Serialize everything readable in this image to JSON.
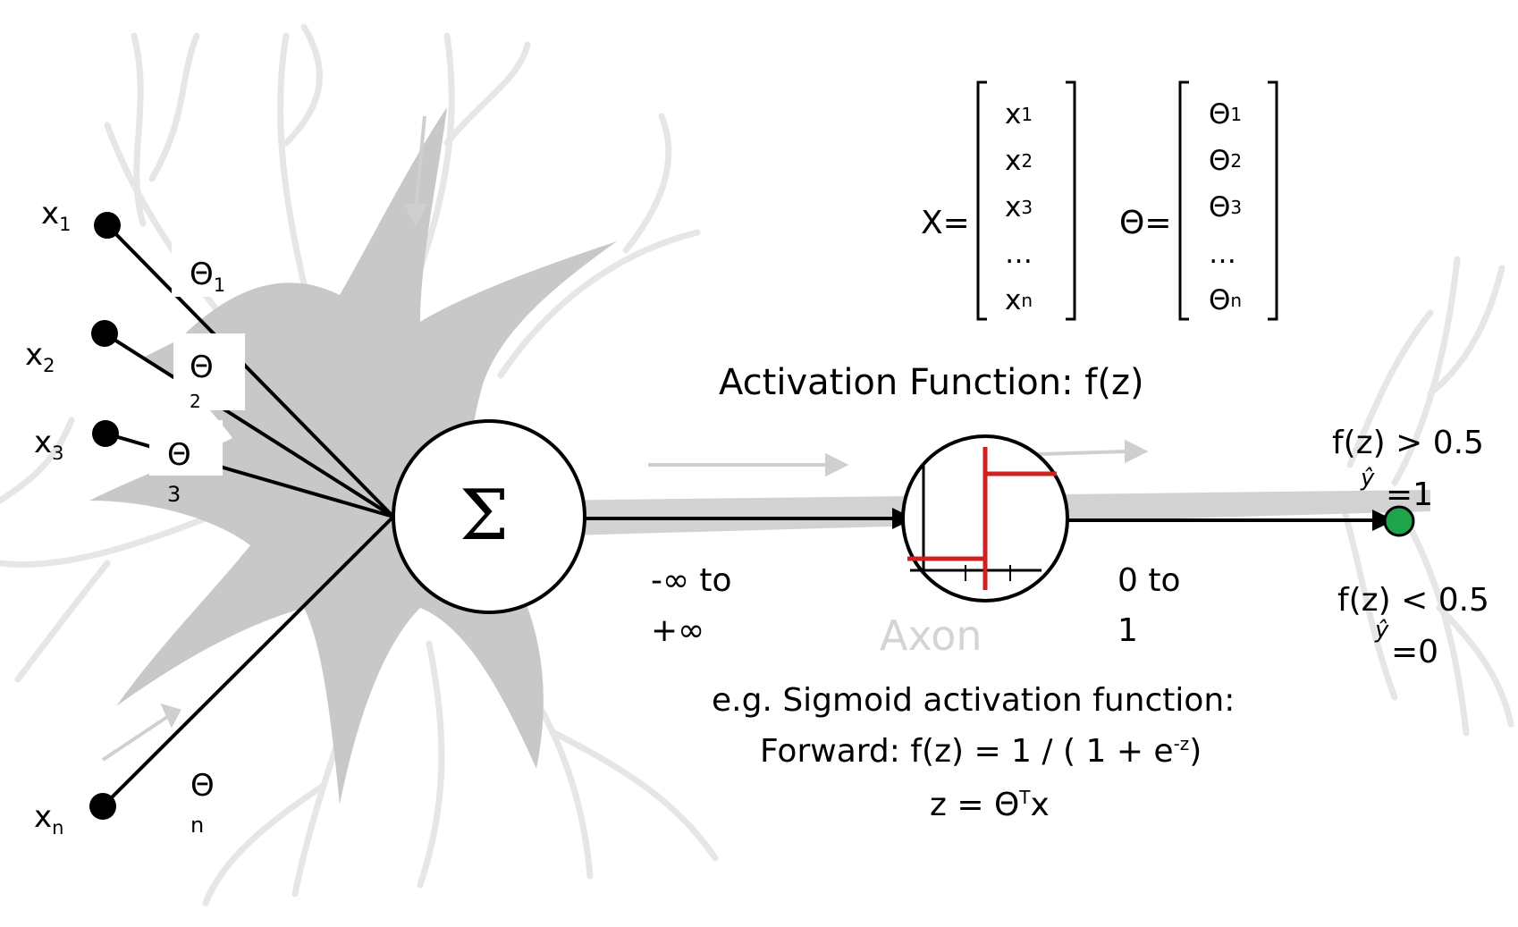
{
  "inputs": [
    {
      "name": "x",
      "sub": "1"
    },
    {
      "name": "x",
      "sub": "2"
    },
    {
      "name": "x",
      "sub": "3"
    },
    {
      "name": "x",
      "sub": "n"
    }
  ],
  "weights": [
    {
      "name": "Θ",
      "sub": "1"
    },
    {
      "name": "Θ",
      "sub": "2"
    },
    {
      "name": "Θ",
      "sub": "3"
    },
    {
      "name": "Θ",
      "sub": "n"
    }
  ],
  "summation_symbol": "Σ",
  "matrix_x": {
    "label": "X=",
    "rows": [
      [
        "x",
        "1"
      ],
      [
        "x",
        "2"
      ],
      [
        "x",
        "3"
      ],
      [
        "…",
        ""
      ],
      [
        "x",
        "n"
      ]
    ]
  },
  "matrix_theta": {
    "label": "Θ=",
    "rows": [
      [
        "Θ",
        "1"
      ],
      [
        "Θ",
        "2"
      ],
      [
        "Θ",
        "3"
      ],
      [
        "…",
        ""
      ],
      [
        "Θ",
        "n"
      ]
    ]
  },
  "activation_title": "Activation Function: f(z)",
  "range_in": {
    "line1": "-∞ to",
    "line2": "+∞"
  },
  "range_out": {
    "line1": "0 to",
    "line2": "1"
  },
  "axon_label": "Axon",
  "output_high": {
    "cond": "f(z) > 0.5",
    "yhat": "ŷ",
    "val": "=1"
  },
  "output_low": {
    "cond": "f(z) < 0.5",
    "yhat": "ŷ",
    "val": "=0"
  },
  "sigmoid_text": {
    "line1": "e.g. Sigmoid activation function:",
    "line2_prefix": "Forward: f(z) = 1 / ( 1 + e",
    "line2_exp": "-z",
    "line2_suffix": ")",
    "line3_prefix": "z = Θ",
    "line3_sup": "T",
    "line3_suffix": "x"
  },
  "colors": {
    "neuron": "#c8c8c8",
    "neuron_light": "#e4e4e4",
    "step": "#d02020",
    "output_dot": "#1ea44a",
    "ink": "#000000"
  }
}
